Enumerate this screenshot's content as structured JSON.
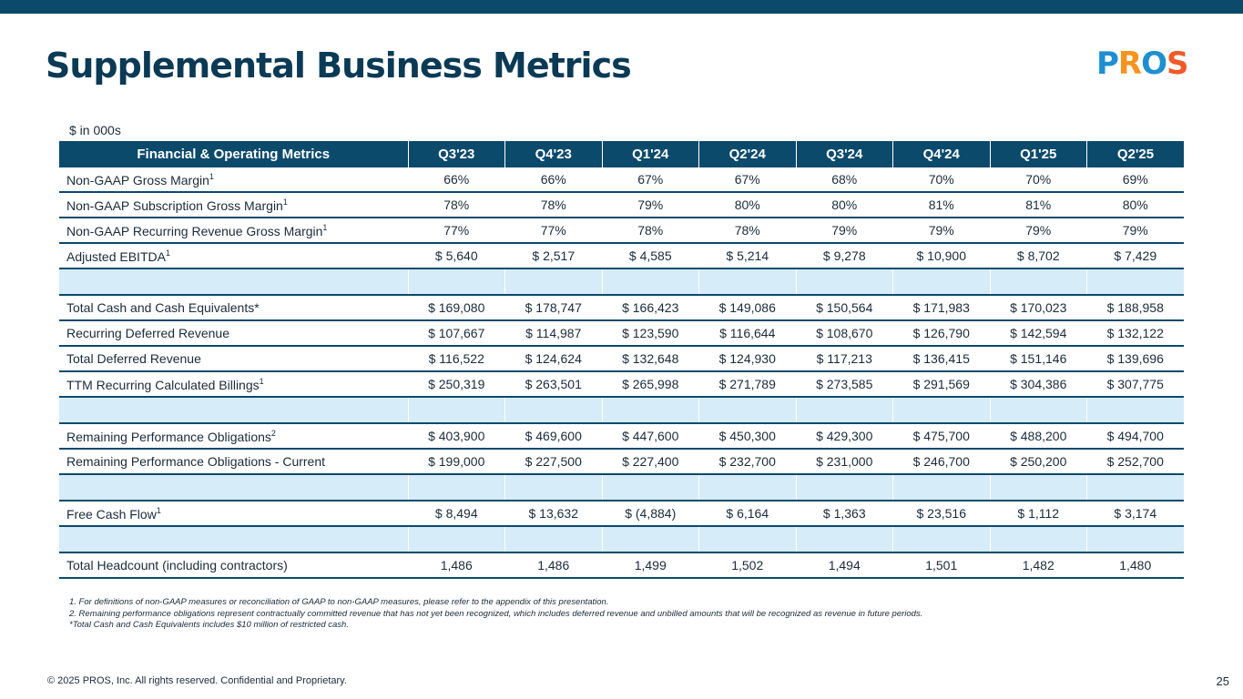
{
  "page": {
    "title": "Supplemental Business Metrics",
    "logo": {
      "p": "P",
      "r": "R",
      "o": "O",
      "s": "S"
    },
    "units": "$ in 000s"
  },
  "table": {
    "headers": [
      "Financial & Operating Metrics",
      "Q3'23",
      "Q4'23",
      "Q1'24",
      "Q2'24",
      "Q3'24",
      "Q4'24",
      "Q1'25",
      "Q2'25"
    ],
    "rows": {
      "gm": {
        "label": "Non-GAAP Gross Margin",
        "sup": "1",
        "values": [
          "66%",
          "66%",
          "67%",
          "67%",
          "68%",
          "70%",
          "70%",
          "69%"
        ]
      },
      "sgm": {
        "label": "Non-GAAP Subscription Gross Margin",
        "sup": "1",
        "values": [
          "78%",
          "78%",
          "79%",
          "80%",
          "80%",
          "81%",
          "81%",
          "80%"
        ]
      },
      "rgm": {
        "label": "Non-GAAP Recurring Revenue Gross Margin",
        "sup": "1",
        "values": [
          "77%",
          "77%",
          "78%",
          "78%",
          "79%",
          "79%",
          "79%",
          "79%"
        ]
      },
      "ebitda": {
        "label": "Adjusted EBITDA",
        "sup": "1",
        "values": [
          "$ 5,640",
          "$ 2,517",
          "$ 4,585",
          "$ 5,214",
          "$ 9,278",
          "$ 10,900",
          "$ 8,702",
          "$ 7,429"
        ]
      },
      "cash": {
        "label": "Total Cash and Cash Equivalents*",
        "values": [
          "$ 169,080",
          "$ 178,747",
          "$ 166,423",
          "$ 149,086",
          "$ 150,564",
          "$ 171,983",
          "$ 170,023",
          "$ 188,958"
        ]
      },
      "rdr": {
        "label": "Recurring Deferred Revenue",
        "values": [
          "$ 107,667",
          "$ 114,987",
          "$ 123,590",
          "$ 116,644",
          "$ 108,670",
          "$ 126,790",
          "$ 142,594",
          "$ 132,122"
        ]
      },
      "tdr": {
        "label": "Total Deferred Revenue",
        "values": [
          "$ 116,522",
          "$ 124,624",
          "$ 132,648",
          "$ 124,930",
          "$ 117,213",
          "$ 136,415",
          "$ 151,146",
          "$ 139,696"
        ]
      },
      "ttm": {
        "label": "TTM Recurring Calculated Billings",
        "sup": "1",
        "values": [
          "$ 250,319",
          "$ 263,501",
          "$ 265,998",
          "$ 271,789",
          "$ 273,585",
          "$ 291,569",
          "$ 304,386",
          "$ 307,775"
        ]
      },
      "rpo": {
        "label": "Remaining Performance Obligations",
        "sup": "2",
        "values": [
          "$ 403,900",
          "$ 469,600",
          "$ 447,600",
          "$ 450,300",
          "$ 429,300",
          "$ 475,700",
          "$ 488,200",
          "$ 494,700"
        ]
      },
      "rpoc": {
        "label": "Remaining Performance Obligations - Current",
        "values": [
          "$ 199,000",
          "$ 227,500",
          "$ 227,400",
          "$ 232,700",
          "$ 231,000",
          "$ 246,700",
          "$ 250,200",
          "$ 252,700"
        ]
      },
      "fcf": {
        "label": "Free Cash Flow",
        "sup": "1",
        "values": [
          "$  8,494",
          "$  13,632",
          "$  (4,884)",
          "$  6,164",
          "$  1,363",
          "$  23,516",
          "$  1,112",
          "$  3,174"
        ]
      },
      "hc": {
        "label": "Total Headcount (including contractors)",
        "values": [
          "1,486",
          "1,486",
          "1,499",
          "1,502",
          "1,494",
          "1,501",
          "1,482",
          "1,480"
        ]
      }
    }
  },
  "notes": [
    "1. For definitions of non-GAAP measures or reconciliation of GAAP to non-GAAP measures, please refer to the appendix of this presentation.",
    "2. Remaining performance obligations represent contractually committed revenue that has not yet been recognized, which includes deferred revenue and unbilled amounts that will be recognized as revenue in future periods.",
    "*Total Cash and Cash Equivalents includes $10 million of restricted cash."
  ],
  "footer": {
    "copyright": "© 2025 PROS, Inc. All rights reserved. Confidential and Proprietary.",
    "page_number": "25"
  }
}
